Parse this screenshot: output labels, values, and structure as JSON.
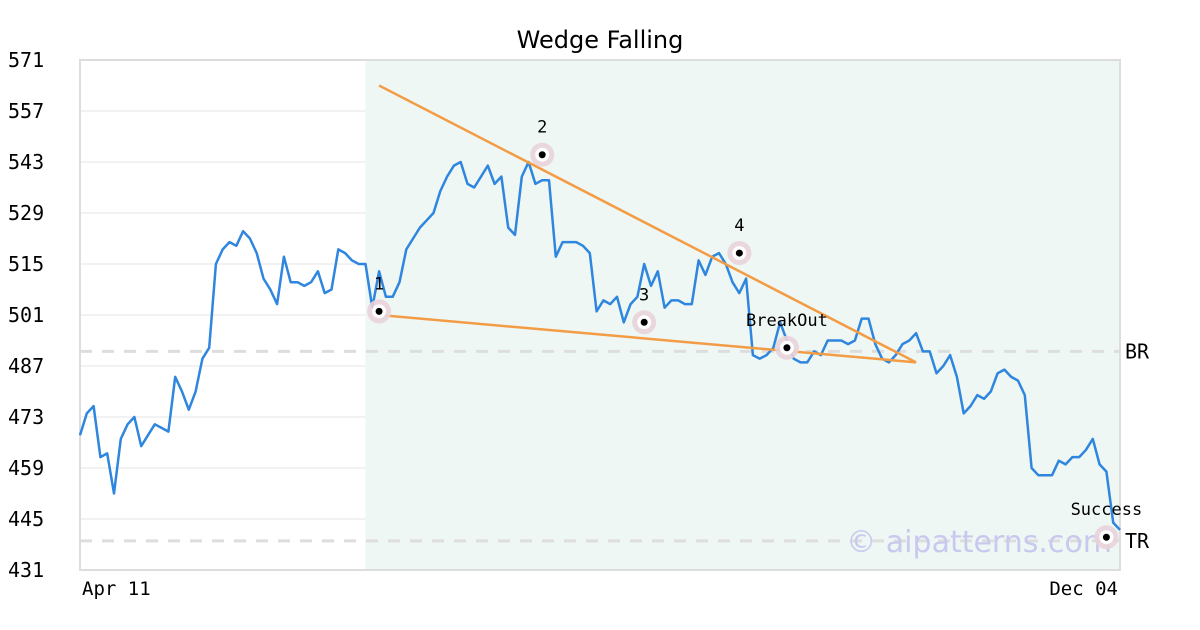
{
  "chart_data": {
    "type": "line",
    "title": "Wedge Falling",
    "ylim": [
      431,
      571
    ],
    "yticks": [
      571,
      557,
      543,
      529,
      515,
      501,
      487,
      473,
      459,
      445,
      431
    ],
    "x_start_label": "Apr 11",
    "x_end_label": "Dec 04",
    "grid": true,
    "colors": {
      "price": "#2e86de",
      "trendline": "#f39c45",
      "pattern_region": "#eef7f3",
      "level_line": "#dddddd",
      "marker_ring": "#e8d3da",
      "grid": "#e6e6e6",
      "frame": "#dddddd"
    },
    "series": [
      {
        "values": [
          468,
          474,
          476,
          462,
          463,
          452,
          467,
          471,
          473,
          465,
          468,
          471,
          470,
          469,
          484,
          480,
          475,
          480,
          489,
          492,
          515,
          519,
          521,
          520,
          524,
          522,
          518,
          511,
          508,
          504,
          517,
          510,
          510,
          509,
          510,
          513,
          507,
          508,
          519,
          518,
          516,
          515,
          515,
          503,
          513,
          506,
          506,
          510,
          519,
          522,
          525,
          527,
          529,
          535,
          539,
          542,
          543,
          537,
          536,
          539,
          542,
          537,
          539,
          525,
          523,
          539,
          543,
          537,
          538,
          538,
          517,
          521,
          521,
          521,
          520,
          518,
          502,
          505,
          504,
          506,
          499,
          504,
          506,
          515,
          509,
          513,
          503,
          505,
          505,
          504,
          504,
          516,
          512,
          517,
          518,
          515,
          510,
          507,
          511,
          490,
          489,
          490,
          492,
          499,
          494,
          489,
          488,
          488,
          491,
          490,
          494,
          494,
          494,
          493,
          494,
          500,
          500,
          493,
          489,
          488,
          490,
          493,
          494,
          496,
          491,
          491,
          485,
          487,
          490,
          484,
          474,
          476,
          479,
          478,
          480,
          485,
          486,
          484,
          483,
          479,
          459,
          457,
          457,
          457,
          461,
          460,
          462,
          462,
          464,
          467,
          460,
          458,
          444,
          442
        ],
        "x_start": 0,
        "x_end": 153
      }
    ],
    "pattern_region": {
      "x_start": 42,
      "x_end": 153
    },
    "trendlines": [
      {
        "x1": 44,
        "y1": 564,
        "x2": 123,
        "y2": 488
      },
      {
        "x1": 44,
        "y1": 501,
        "x2": 123,
        "y2": 488
      }
    ],
    "levels": [
      {
        "label": "BR",
        "y": 491
      },
      {
        "label": "TR",
        "y": 439
      }
    ],
    "points": [
      {
        "label": "1",
        "x": 44,
        "y": 502
      },
      {
        "label": "2",
        "x": 68,
        "y": 545
      },
      {
        "label": "3",
        "x": 83,
        "y": 499
      },
      {
        "label": "4",
        "x": 97,
        "y": 518
      },
      {
        "label": "BreakOut",
        "x": 104,
        "y": 492
      },
      {
        "label": "Success",
        "x": 151,
        "y": 440
      }
    ],
    "watermark": "© aipatterns.com"
  }
}
